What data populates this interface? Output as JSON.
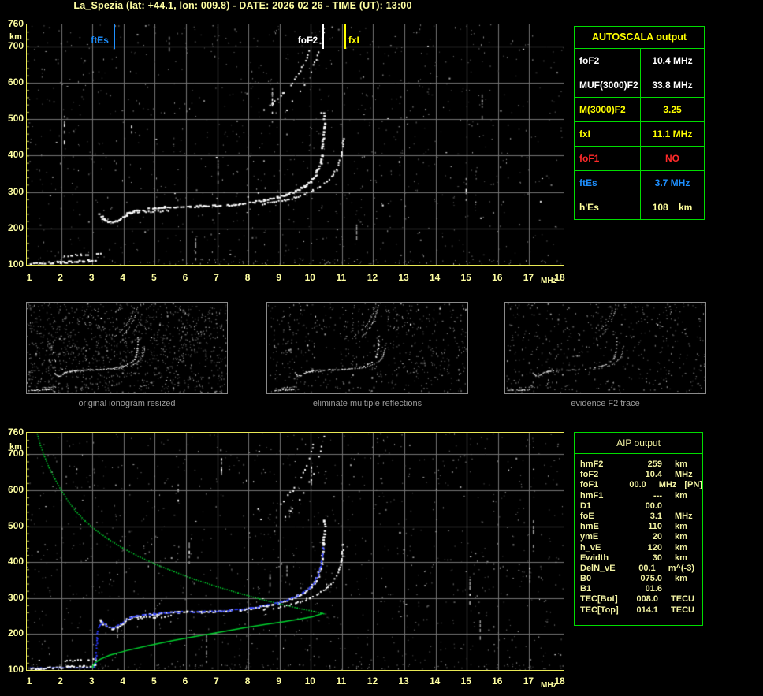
{
  "title": "La_Spezia (lat: +44.1, lon: 009.8) - DATE: 2026 02 26 - TIME (UT): 13:00",
  "colors": {
    "background": "#000000",
    "axis_text": "#ffffa2",
    "plot_border": "#e9e955",
    "grid": "#757575",
    "table_border": "#00dd00",
    "autoscala_header": "#ffff00",
    "white": "#ffffff",
    "yellow": "#ffff00",
    "red": "#ff2a2a",
    "blue": "#1e90ff",
    "pale_yellow": "#ffff9c",
    "aip_text": "#f4f4a4",
    "caption": "#9a9a9a",
    "green_profile": "#00d22e",
    "blue_trace": "#2b3cff"
  },
  "autoscala": {
    "title": "AUTOSCALA output",
    "rows": [
      {
        "label": "foF2",
        "value": "10.4 MHz",
        "color": "white"
      },
      {
        "label": "MUF(3000)F2",
        "value": "33.8 MHz",
        "color": "white"
      },
      {
        "label": "M(3000)F2",
        "value": "3.25",
        "color": "yellow"
      },
      {
        "label": "fxI",
        "value": "11.1 MHz",
        "color": "yellow"
      },
      {
        "label": "foF1",
        "value": "NO",
        "color": "red"
      },
      {
        "label": "ftEs",
        "value": "3.7 MHz",
        "color": "blue"
      },
      {
        "label": "h'Es",
        "value": "108    km",
        "color": "pale_yellow"
      }
    ]
  },
  "panels": [
    {
      "caption": "original ionogram resized",
      "noise": {
        "gray": 1250,
        "bright": 28,
        "seed": 21
      },
      "trace_gap": 0.34,
      "trace_color": "#ffffff"
    },
    {
      "caption": "eliminate multiple reflections",
      "noise": {
        "gray": 620,
        "bright": 20,
        "seed": 22
      },
      "trace_gap": 0.3,
      "trace_color": "#ffffff"
    },
    {
      "caption": "evidence F2 trace",
      "noise": {
        "gray": 480,
        "bright": 14,
        "seed": 23
      },
      "trace_gap": 0.46,
      "trace_color": "#e0e0e0"
    }
  ],
  "aip": {
    "title": "AIP output",
    "rows": [
      {
        "label": "hmF2",
        "value": "259",
        "unit": "km",
        "note": ""
      },
      {
        "label": "foF2",
        "value": "10.4",
        "unit": "MHz",
        "note": ""
      },
      {
        "label": "foF1",
        "value": "00.0",
        "unit": "MHz",
        "note": "[PN]"
      },
      {
        "label": "hmF1",
        "value": "---",
        "unit": "km",
        "note": ""
      },
      {
        "label": "D1",
        "value": "00.0",
        "unit": "",
        "note": ""
      },
      {
        "label": "foE",
        "value": "3.1",
        "unit": "MHz",
        "note": ""
      },
      {
        "label": "hmE",
        "value": "110",
        "unit": "km",
        "note": ""
      },
      {
        "label": "ymE",
        "value": "20",
        "unit": "km",
        "note": ""
      },
      {
        "label": "h_vE",
        "value": "120",
        "unit": "km",
        "note": ""
      },
      {
        "label": "Ewidth",
        "value": "30",
        "unit": "km",
        "note": ""
      },
      {
        "label": "DelN_vE",
        "value": "00.1",
        "unit": "m^(-3)",
        "note": ""
      },
      {
        "label": "B0",
        "value": "075.0",
        "unit": "km",
        "note": ""
      },
      {
        "label": "B1",
        "value": "01.6",
        "unit": "",
        "note": ""
      },
      {
        "label": "TEC[Bot]",
        "value": "008.0",
        "unit": "TECU",
        "note": ""
      },
      {
        "label": "TEC[Top]",
        "value": "014.1",
        "unit": "TECU",
        "note": ""
      }
    ]
  },
  "chart_data": [
    {
      "id": "main-ionogram",
      "type": "scatter",
      "title": "",
      "xlabel": "MHz",
      "ylabel": "km",
      "xlim": [
        1,
        18
      ],
      "ylim": [
        100,
        760
      ],
      "xticks": [
        1,
        2,
        3,
        4,
        5,
        6,
        7,
        8,
        9,
        10,
        11,
        12,
        13,
        14,
        15,
        16,
        17,
        18
      ],
      "yticks": [
        760,
        700,
        600,
        500,
        400,
        300,
        200,
        100
      ],
      "grid": true,
      "noise": {
        "gray": 950,
        "bright": 70,
        "columns": 9,
        "bottom_row": 130,
        "seed": 7
      },
      "markers": [
        {
          "label": "ftEs",
          "f": 3.7,
          "color": "#1e90ff",
          "label_side": "left"
        },
        {
          "label": "foF2",
          "f": 10.4,
          "color": "#ffffff",
          "label_side": "left"
        },
        {
          "label": "fxI",
          "f": 11.1,
          "color": "#ffff00",
          "label_side": "right"
        }
      ],
      "series": [
        {
          "name": "Es-trace-lower",
          "color": "#ffffff",
          "style": "echo-bold",
          "points": [
            [
              1.0,
              105
            ],
            [
              1.2,
              106
            ],
            [
              1.45,
              107
            ],
            [
              1.7,
              108
            ],
            [
              1.95,
              109
            ],
            [
              2.2,
              110
            ],
            [
              2.45,
              111
            ],
            [
              2.7,
              112
            ],
            [
              2.9,
              113
            ],
            [
              3.05,
              114
            ]
          ]
        },
        {
          "name": "Es-trace-upper",
          "color": "#ffffff",
          "style": "echo",
          "points": [
            [
              2.1,
              126
            ],
            [
              2.35,
              128
            ],
            [
              2.6,
              129
            ],
            [
              2.85,
              130
            ],
            [
              3.1,
              131
            ],
            [
              3.35,
              132
            ]
          ]
        },
        {
          "name": "F-trace-ordinary",
          "color": "#ffffff",
          "style": "echo-bold",
          "points": [
            [
              3.2,
              240
            ],
            [
              3.32,
              229
            ],
            [
              3.45,
              221
            ],
            [
              3.6,
              217
            ],
            [
              3.75,
              220
            ],
            [
              3.9,
              228
            ],
            [
              4.05,
              238
            ],
            [
              4.2,
              246
            ],
            [
              4.4,
              251
            ],
            [
              4.65,
              254
            ],
            [
              4.95,
              257
            ],
            [
              5.3,
              260
            ],
            [
              5.7,
              262
            ],
            [
              6.1,
              263
            ],
            [
              6.5,
              263
            ],
            [
              6.9,
              264
            ],
            [
              7.3,
              266
            ],
            [
              7.7,
              269
            ],
            [
              8.1,
              274
            ],
            [
              8.5,
              280
            ],
            [
              8.9,
              287
            ],
            [
              9.2,
              295
            ],
            [
              9.5,
              305
            ],
            [
              9.75,
              317
            ],
            [
              9.95,
              330
            ],
            [
              10.1,
              345
            ],
            [
              10.2,
              362
            ],
            [
              10.28,
              382
            ],
            [
              10.33,
              403
            ],
            [
              10.36,
              426
            ],
            [
              10.38,
              452
            ],
            [
              10.4,
              480
            ],
            [
              10.41,
              518
            ]
          ]
        },
        {
          "name": "F-trace-stratification",
          "color": "#ffffff",
          "style": "echo",
          "points": [
            [
              4.1,
              244
            ],
            [
              4.5,
              247
            ],
            [
              5.0,
              249
            ],
            [
              5.5,
              251
            ]
          ]
        },
        {
          "name": "F-trace-extraordinary",
          "color": "#ffffff",
          "style": "echo",
          "points": [
            [
              8.45,
              269
            ],
            [
              8.8,
              274
            ],
            [
              9.15,
              280
            ],
            [
              9.5,
              287
            ],
            [
              9.8,
              296
            ],
            [
              10.05,
              306
            ],
            [
              10.3,
              318
            ],
            [
              10.5,
              331
            ],
            [
              10.67,
              346
            ],
            [
              10.8,
              362
            ],
            [
              10.89,
              381
            ],
            [
              10.95,
              402
            ],
            [
              10.99,
              425
            ],
            [
              11.02,
              450
            ]
          ]
        },
        {
          "name": "second-hop-ordinary",
          "color": "#ffffff",
          "style": "echo-sparse",
          "points": [
            [
              8.4,
              520
            ],
            [
              8.75,
              545
            ],
            [
              9.1,
              572
            ],
            [
              9.4,
              602
            ],
            [
              9.65,
              635
            ],
            [
              9.85,
              670
            ],
            [
              10.0,
              708
            ],
            [
              10.12,
              748
            ]
          ]
        },
        {
          "name": "second-hop-extraordinary",
          "color": "#ffffff",
          "style": "echo-sparse",
          "points": [
            [
              9.05,
              522
            ],
            [
              9.4,
              552
            ],
            [
              9.7,
              586
            ],
            [
              9.95,
              624
            ],
            [
              10.15,
              666
            ],
            [
              10.3,
              712
            ],
            [
              10.4,
              752
            ]
          ]
        }
      ]
    },
    {
      "id": "profilogram",
      "type": "scatter",
      "title": "",
      "xlabel": "MHz",
      "ylabel": "km",
      "xlim": [
        1,
        18
      ],
      "ylim": [
        100,
        760
      ],
      "xticks": [
        1,
        2,
        3,
        4,
        5,
        6,
        7,
        8,
        9,
        10,
        11,
        12,
        13,
        14,
        15,
        16,
        17,
        18
      ],
      "yticks": [
        760,
        700,
        600,
        500,
        400,
        300,
        200,
        100
      ],
      "grid": true,
      "background_echoes": "main-ionogram",
      "noise": {
        "gray": 1000,
        "bright": 80,
        "columns": 12,
        "bottom_row": 120,
        "seed": 13
      },
      "markers": [],
      "series": [
        {
          "name": "electron-density-profile-topside",
          "color": "#00d22e",
          "style": "dots-green",
          "points": [
            [
              1.22,
              758
            ],
            [
              1.32,
              726
            ],
            [
              1.45,
              695
            ],
            [
              1.6,
              664
            ],
            [
              1.78,
              633
            ],
            [
              1.98,
              602
            ],
            [
              2.2,
              572
            ],
            [
              2.45,
              543
            ],
            [
              2.75,
              516
            ],
            [
              3.1,
              490
            ],
            [
              3.5,
              465
            ],
            [
              3.95,
              441
            ],
            [
              4.45,
              418
            ],
            [
              5.0,
              396
            ],
            [
              5.6,
              375
            ],
            [
              6.25,
              354
            ],
            [
              6.95,
              334
            ],
            [
              7.65,
              316
            ],
            [
              8.35,
              299
            ],
            [
              9.0,
              285
            ],
            [
              9.55,
              274
            ],
            [
              10.0,
              266
            ],
            [
              10.3,
              260
            ],
            [
              10.4,
              258
            ]
          ]
        },
        {
          "name": "electron-density-profile-bottomside",
          "color": "#00d22e",
          "style": "line-green",
          "points": [
            [
              10.4,
              258
            ],
            [
              10.05,
              248
            ],
            [
              9.6,
              241
            ],
            [
              9.1,
              234
            ],
            [
              8.5,
              226
            ],
            [
              7.9,
              218
            ],
            [
              7.2,
              207
            ],
            [
              6.4,
              195
            ],
            [
              5.6,
              182
            ],
            [
              4.8,
              168
            ],
            [
              4.1,
              154
            ],
            [
              3.55,
              141
            ],
            [
              3.25,
              130
            ],
            [
              3.1,
              121
            ],
            [
              3.03,
              114
            ],
            [
              3.0,
              109
            ],
            [
              3.1,
              107
            ]
          ]
        },
        {
          "name": "restored-Es-trace",
          "color": "#2b3cff",
          "style": "dash-blue",
          "points": [
            [
              1.0,
              107
            ],
            [
              3.05,
              107
            ]
          ]
        },
        {
          "name": "restored-F-trace",
          "color": "#2b3cff",
          "style": "dots-blue",
          "points": [
            [
              3.06,
              112
            ],
            [
              3.1,
              150
            ],
            [
              3.13,
              190
            ],
            [
              3.18,
              222
            ],
            [
              3.3,
              235
            ],
            [
              3.45,
              225
            ],
            [
              3.6,
              220
            ],
            [
              3.75,
              222
            ],
            [
              3.9,
              230
            ],
            [
              4.05,
              240
            ],
            [
              4.2,
              247
            ],
            [
              4.4,
              252
            ],
            [
              4.65,
              255
            ],
            [
              4.95,
              258
            ],
            [
              5.3,
              261
            ],
            [
              5.7,
              263
            ],
            [
              6.1,
              264
            ],
            [
              6.5,
              264
            ],
            [
              6.9,
              265
            ],
            [
              7.3,
              267
            ],
            [
              7.7,
              270
            ],
            [
              8.1,
              275
            ],
            [
              8.5,
              281
            ],
            [
              8.9,
              288
            ],
            [
              9.2,
              296
            ],
            [
              9.5,
              306
            ],
            [
              9.75,
              318
            ],
            [
              9.95,
              331
            ],
            [
              10.1,
              346
            ],
            [
              10.2,
              363
            ],
            [
              10.28,
              383
            ],
            [
              10.33,
              404
            ],
            [
              10.36,
              424
            ],
            [
              10.38,
              442
            ]
          ]
        }
      ]
    }
  ]
}
